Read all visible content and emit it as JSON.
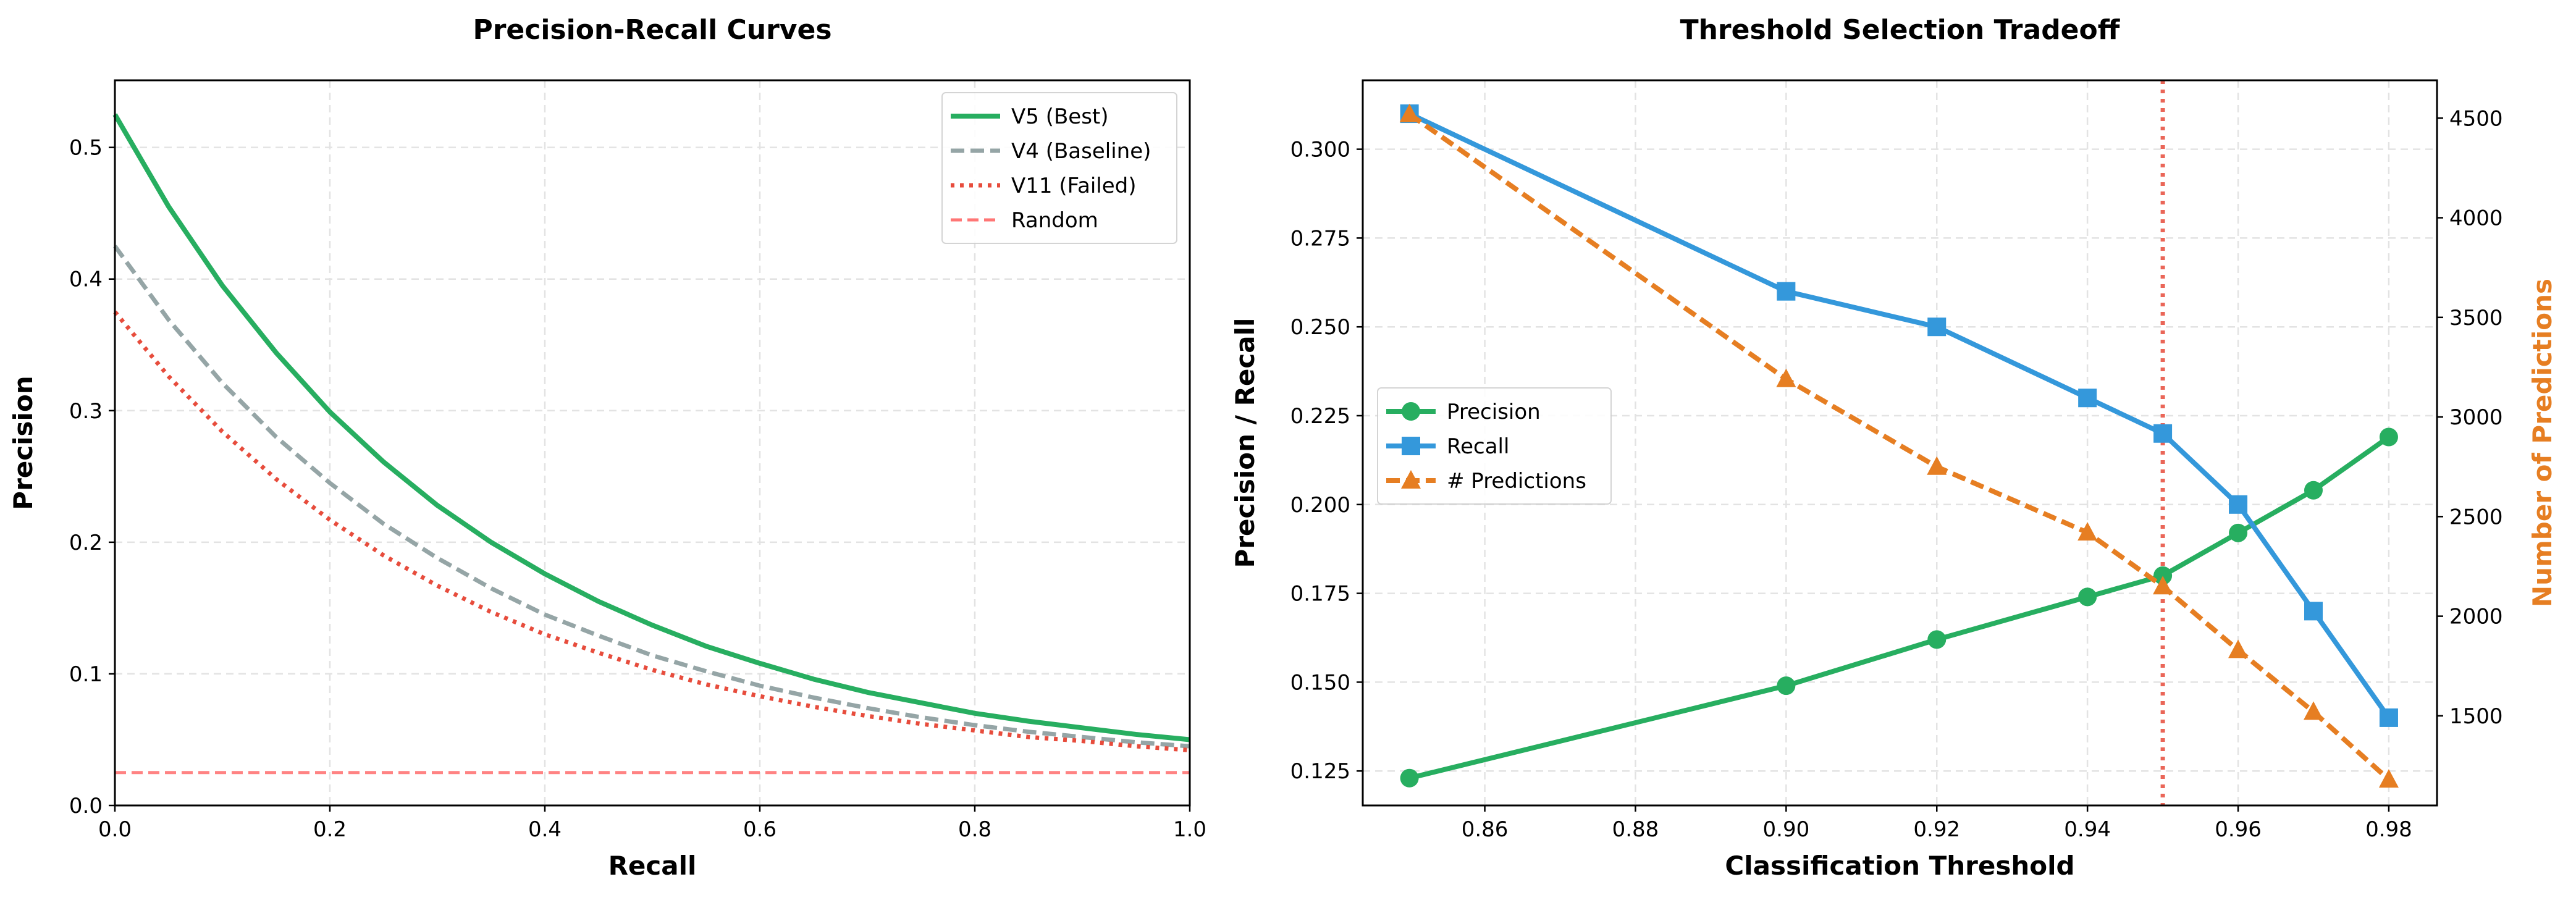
{
  "chart_data": [
    {
      "type": "line",
      "title": "Precision-Recall Curves",
      "xlabel": "Recall",
      "ylabel": "Precision",
      "xlim": [
        0,
        1
      ],
      "ylim": [
        0,
        0.551
      ],
      "xticks": [
        "0.0",
        "0.2",
        "0.4",
        "0.6",
        "0.8",
        "1.0"
      ],
      "yticks": [
        "0.0",
        "0.1",
        "0.2",
        "0.3",
        "0.4",
        "0.5"
      ],
      "grid": true,
      "legend_placement": "top-right",
      "x": [
        0,
        0.05,
        0.1,
        0.15,
        0.2,
        0.25,
        0.3,
        0.35,
        0.4,
        0.45,
        0.5,
        0.55,
        0.6,
        0.65,
        0.7,
        0.75,
        0.8,
        0.85,
        0.9,
        0.95,
        1.0
      ],
      "series": [
        {
          "name": "V5 (Best)",
          "color": "#27ae60",
          "style": "solid",
          "values": [
            0.525,
            0.455,
            0.395,
            0.344,
            0.299,
            0.261,
            0.228,
            0.2,
            0.176,
            0.155,
            0.137,
            0.121,
            0.108,
            0.096,
            0.086,
            0.078,
            0.07,
            0.064,
            0.059,
            0.054,
            0.05
          ]
        },
        {
          "name": "V4 (Baseline)",
          "color": "#95a5a6",
          "style": "dashed",
          "values": [
            0.425,
            0.369,
            0.321,
            0.28,
            0.245,
            0.214,
            0.188,
            0.165,
            0.145,
            0.129,
            0.114,
            0.102,
            0.091,
            0.082,
            0.074,
            0.067,
            0.061,
            0.056,
            0.052,
            0.048,
            0.045
          ]
        },
        {
          "name": "V11 (Failed)",
          "color": "#e74c3c",
          "style": "dotted",
          "values": [
            0.375,
            0.326,
            0.284,
            0.248,
            0.217,
            0.19,
            0.167,
            0.147,
            0.13,
            0.116,
            0.103,
            0.092,
            0.083,
            0.075,
            0.068,
            0.062,
            0.057,
            0.052,
            0.049,
            0.045,
            0.042
          ]
        },
        {
          "name": "Random",
          "color": "#ff7675",
          "style": "dashed-thin",
          "values": [
            0.025,
            0.025,
            0.025,
            0.025,
            0.025,
            0.025,
            0.025,
            0.025,
            0.025,
            0.025,
            0.025,
            0.025,
            0.025,
            0.025,
            0.025,
            0.025,
            0.025,
            0.025,
            0.025,
            0.025,
            0.025
          ]
        }
      ]
    },
    {
      "type": "line",
      "title": "Threshold Selection Tradeoff",
      "xlabel": "Classification Threshold",
      "ylabel": "Precision / Recall",
      "ylabel_right": "Number of Predictions",
      "ylabel_right_color": "#e67e22",
      "xlim": [
        0.8438,
        0.9864
      ],
      "ylim": [
        0.1153,
        0.3194
      ],
      "ylim_right": [
        1050,
        4690
      ],
      "xticks": [
        "0.86",
        "0.88",
        "0.90",
        "0.92",
        "0.94",
        "0.96",
        "0.98"
      ],
      "yticks": [
        "0.125",
        "0.150",
        "0.175",
        "0.200",
        "0.225",
        "0.250",
        "0.275",
        "0.300"
      ],
      "yticks_right": [
        "1500",
        "2000",
        "2500",
        "3000",
        "3500",
        "4000",
        "4500"
      ],
      "grid": true,
      "legend_placement": "center-left",
      "threshold_line": {
        "x": 0.95,
        "color": "#e74c3c",
        "style": "dotted"
      },
      "x": [
        0.85,
        0.9,
        0.92,
        0.94,
        0.95,
        0.96,
        0.97,
        0.98
      ],
      "series": [
        {
          "name": "Precision",
          "color": "#27ae60",
          "marker": "circle",
          "axis": "left",
          "values": [
            0.123,
            0.149,
            0.162,
            0.174,
            0.18,
            0.192,
            0.204,
            0.219
          ]
        },
        {
          "name": "Recall",
          "color": "#3498db",
          "marker": "square",
          "axis": "left",
          "values": [
            0.31,
            0.26,
            0.25,
            0.23,
            0.22,
            0.2,
            0.17,
            0.14
          ]
        },
        {
          "name": "# Predictions",
          "color": "#e67e22",
          "marker": "triangle",
          "axis": "right",
          "style": "dashed",
          "values": [
            4520,
            3190,
            2750,
            2420,
            2150,
            1830,
            1520,
            1180
          ]
        }
      ]
    }
  ]
}
